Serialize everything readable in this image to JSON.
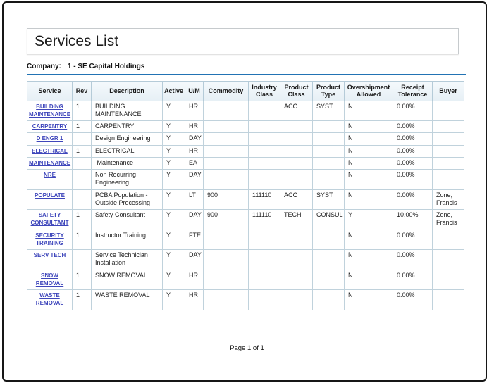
{
  "header": {
    "title": "Services List"
  },
  "company": {
    "label": "Company:",
    "value": "1 - SE Capital Holdings"
  },
  "table": {
    "columns": [
      "Service",
      "Rev",
      "Description",
      "Active",
      "U/M",
      "Commodity",
      "Industry Class",
      "Product Class",
      "Product Type",
      "Overshipment Allowed",
      "Receipt Tolerance",
      "Buyer"
    ],
    "rows": [
      {
        "service": "BUILDING\nMAINTENANCE",
        "rev": "1",
        "description": "BUILDING\nMAINTENANCE",
        "active": "Y",
        "um": "HR",
        "commodity": "",
        "industry_class": "",
        "product_class": "ACC",
        "product_type": "SYST",
        "overshipment_allowed": "N",
        "receipt_tolerance": "0.00%",
        "buyer": ""
      },
      {
        "service": "CARPENTRY",
        "rev": "1",
        "description": "CARPENTRY",
        "active": "Y",
        "um": "HR",
        "commodity": "",
        "industry_class": "",
        "product_class": "",
        "product_type": "",
        "overshipment_allowed": "N",
        "receipt_tolerance": "0.00%",
        "buyer": ""
      },
      {
        "service": "D ENGR 1",
        "rev": "",
        "description": "Design Engineering",
        "active": "Y",
        "um": "DAY",
        "commodity": "",
        "industry_class": "",
        "product_class": "",
        "product_type": "",
        "overshipment_allowed": "N",
        "receipt_tolerance": "0.00%",
        "buyer": ""
      },
      {
        "service": "ELECTRICAL",
        "rev": "1",
        "description": "ELECTRICAL",
        "active": "Y",
        "um": "HR",
        "commodity": "",
        "industry_class": "",
        "product_class": "",
        "product_type": "",
        "overshipment_allowed": "N",
        "receipt_tolerance": "0.00%",
        "buyer": ""
      },
      {
        "service": "MAINTENANCE",
        "rev": "",
        "description": " Maintenance",
        "active": "Y",
        "um": "EA",
        "commodity": "",
        "industry_class": "",
        "product_class": "",
        "product_type": "",
        "overshipment_allowed": "N",
        "receipt_tolerance": "0.00%",
        "buyer": ""
      },
      {
        "service": "NRE",
        "rev": "",
        "description": "Non Recurring\nEngineering",
        "active": "Y",
        "um": "DAY",
        "commodity": "",
        "industry_class": "",
        "product_class": "",
        "product_type": "",
        "overshipment_allowed": "N",
        "receipt_tolerance": "0.00%",
        "buyer": ""
      },
      {
        "service": "POPULATE",
        "rev": "",
        "description": "PCBA Population -\nOutside Processing",
        "active": "Y",
        "um": "LT",
        "commodity": "900",
        "industry_class": "111110",
        "product_class": "ACC",
        "product_type": "SYST",
        "overshipment_allowed": "N",
        "receipt_tolerance": "0.00%",
        "buyer": "Zone,\nFrancis"
      },
      {
        "service": "SAFETY\nCONSULTANT",
        "rev": "1",
        "description": "Safety Consultant",
        "active": "Y",
        "um": "DAY",
        "commodity": "900",
        "industry_class": "111110",
        "product_class": "TECH",
        "product_type": "CONSUL",
        "overshipment_allowed": "Y",
        "receipt_tolerance": "10.00%",
        "buyer": "Zone,\nFrancis"
      },
      {
        "service": "SECURITY\nTRAINING",
        "rev": "1",
        "description": "Instructor Training",
        "active": "Y",
        "um": "FTE",
        "commodity": "",
        "industry_class": "",
        "product_class": "",
        "product_type": "",
        "overshipment_allowed": "N",
        "receipt_tolerance": "0.00%",
        "buyer": ""
      },
      {
        "service": "SERV TECH",
        "rev": "",
        "description": "Service Technician\nInstallation",
        "active": "Y",
        "um": "DAY",
        "commodity": "",
        "industry_class": "",
        "product_class": "",
        "product_type": "",
        "overshipment_allowed": "N",
        "receipt_tolerance": "0.00%",
        "buyer": ""
      },
      {
        "service": "SNOW REMOVAL",
        "rev": "1",
        "description": "SNOW REMOVAL",
        "active": "Y",
        "um": "HR",
        "commodity": "",
        "industry_class": "",
        "product_class": "",
        "product_type": "",
        "overshipment_allowed": "N",
        "receipt_tolerance": "0.00%",
        "buyer": ""
      },
      {
        "service": "WASTE\nREMOVAL",
        "rev": "1",
        "description": "WASTE REMOVAL",
        "active": "Y",
        "um": "HR",
        "commodity": "",
        "industry_class": "",
        "product_class": "",
        "product_type": "",
        "overshipment_allowed": "N",
        "receipt_tolerance": "0.00%",
        "buyer": ""
      }
    ]
  },
  "footer": {
    "page_label": "Page 1 of 1"
  },
  "colors": {
    "accent_rule": "#2273b4",
    "link": "#3e46bb",
    "header_background": "#eaf2f8",
    "table_border": "#c0d2dc",
    "page_border": "#161616"
  }
}
